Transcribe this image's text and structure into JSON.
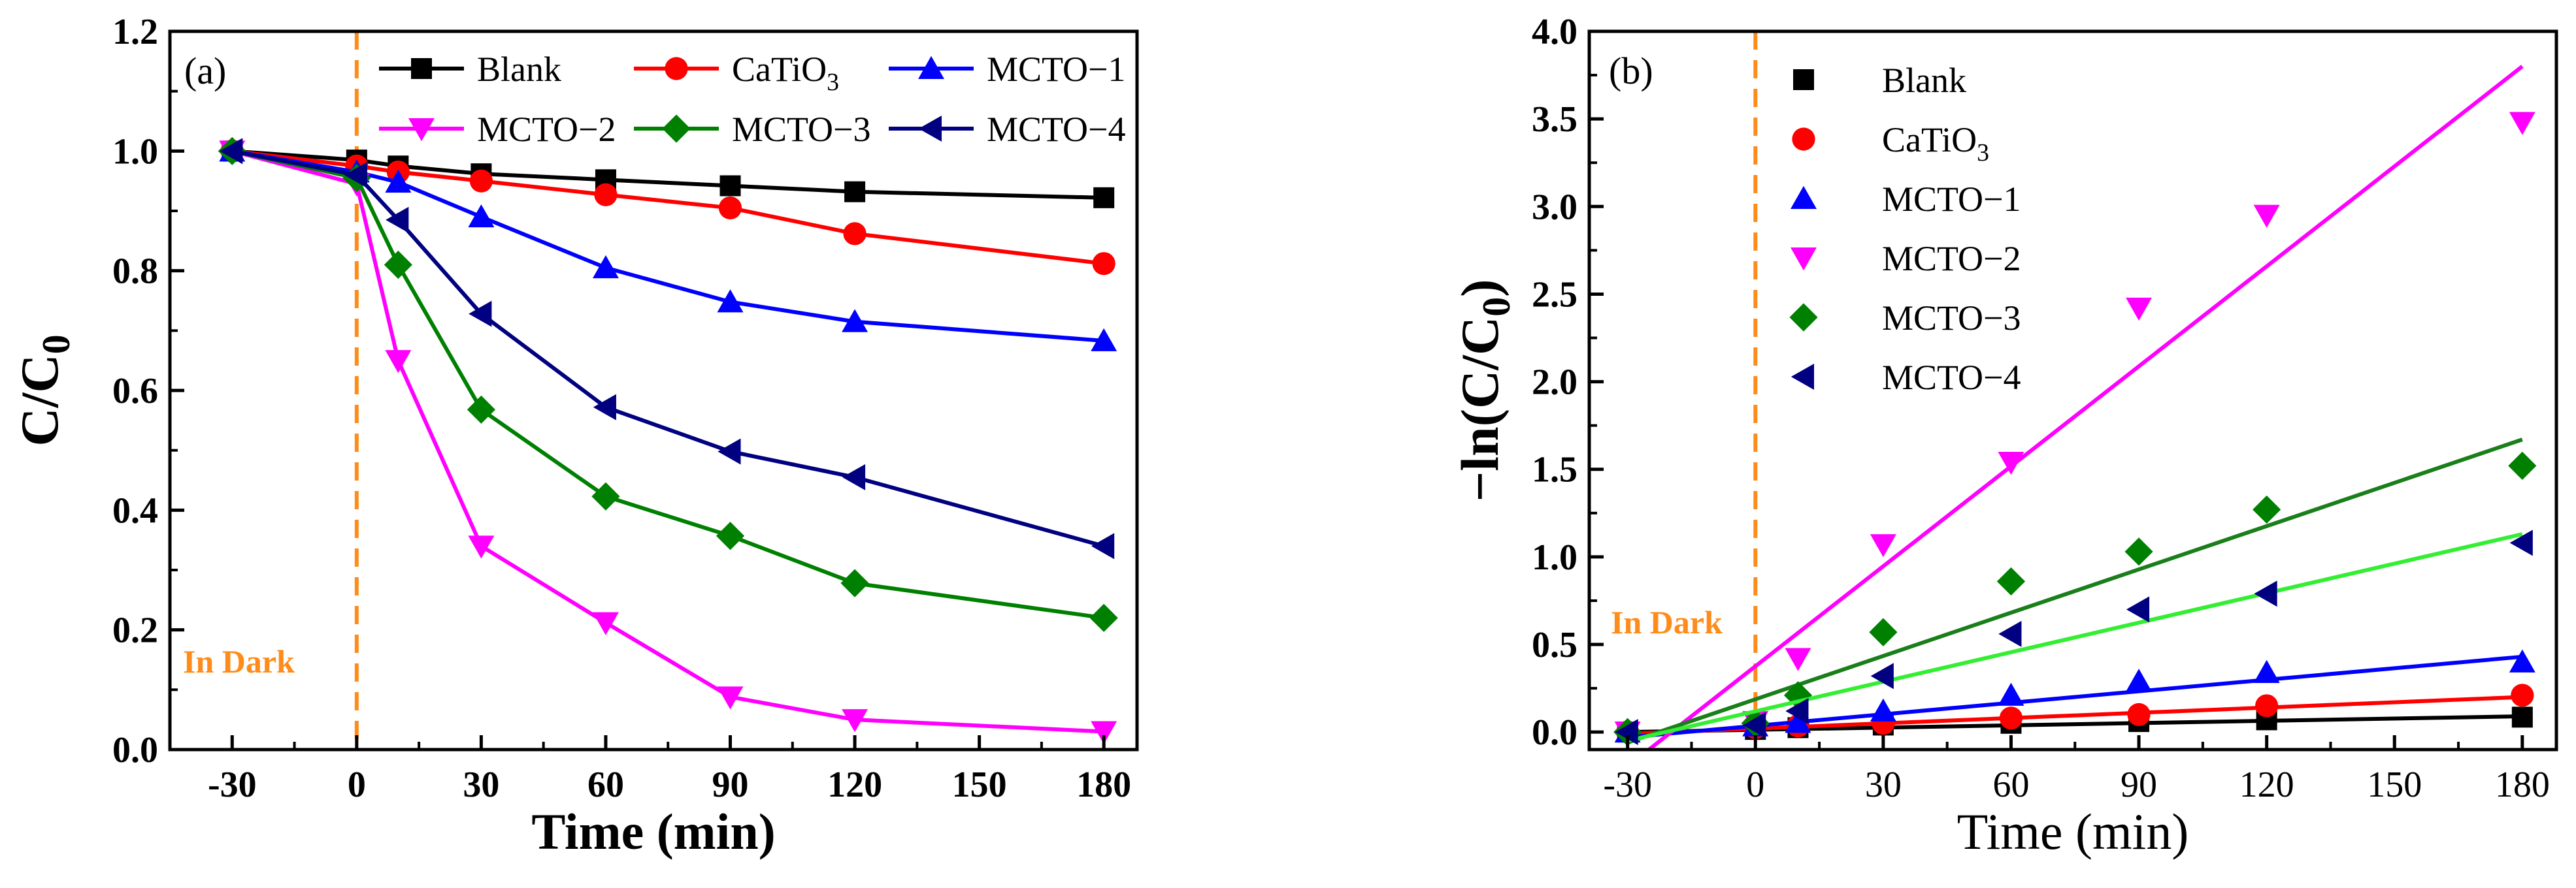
{
  "chart_data": [
    {
      "panel_label": "(a)",
      "type": "line",
      "xlabel": "Time (min)",
      "ylabel_main": "C/C",
      "ylabel_sub": "0",
      "x": [
        -30,
        0,
        10,
        30,
        60,
        90,
        120,
        180
      ],
      "xticks": [
        -30,
        0,
        30,
        60,
        90,
        120,
        150,
        180
      ],
      "xtick_labels": [
        "-30",
        "0",
        "30",
        "60",
        "90",
        "120",
        "150",
        "180"
      ],
      "yticks": [
        0.0,
        0.2,
        0.4,
        0.6,
        0.8,
        1.0,
        1.2
      ],
      "ytick_labels": [
        "0.0",
        "0.2",
        "0.4",
        "0.6",
        "0.8",
        "1.0",
        "1.2"
      ],
      "xlim": [
        -45,
        188
      ],
      "ylim": [
        0,
        1.2
      ],
      "dark_line_x": 0,
      "annotation": "In Dark",
      "legend_position": "top-right, 3 columns",
      "series": [
        {
          "name": "Blank",
          "name_main": "Blank",
          "name_sub": "",
          "color": "#000000",
          "marker": "square",
          "values": [
            1.0,
            0.985,
            0.975,
            0.962,
            0.952,
            0.942,
            0.932,
            0.922
          ]
        },
        {
          "name": "CaTiO3",
          "name_main": "CaTiO",
          "name_sub": "3",
          "color": "#ff0000",
          "marker": "circle",
          "values": [
            1.0,
            0.975,
            0.965,
            0.95,
            0.927,
            0.905,
            0.862,
            0.812
          ]
        },
        {
          "name": "MCTO-1",
          "name_main": "MCTO−1",
          "name_sub": "",
          "color": "#0000ff",
          "marker": "triangle-up",
          "values": [
            1.0,
            0.965,
            0.948,
            0.89,
            0.805,
            0.748,
            0.715,
            0.683
          ]
        },
        {
          "name": "MCTO-2",
          "name_main": "MCTO−2",
          "name_sub": "",
          "color": "#ff00ff",
          "marker": "triangle-down",
          "values": [
            1.0,
            0.945,
            0.65,
            0.34,
            0.212,
            0.088,
            0.05,
            0.03
          ]
        },
        {
          "name": "MCTO-3",
          "name_main": "MCTO−3",
          "name_sub": "",
          "color": "#008000",
          "marker": "diamond",
          "values": [
            1.0,
            0.955,
            0.81,
            0.568,
            0.423,
            0.357,
            0.278,
            0.22
          ]
        },
        {
          "name": "MCTO-4",
          "name_main": "MCTO−4",
          "name_sub": "",
          "color": "#000080",
          "marker": "triangle-left",
          "values": [
            1.0,
            0.96,
            0.885,
            0.728,
            0.572,
            0.498,
            0.455,
            0.34
          ]
        }
      ]
    },
    {
      "panel_label": "(b)",
      "type": "scatter",
      "xlabel": "Time (min)",
      "ylabel_main": "−ln(C/C",
      "ylabel_sub": "0",
      "ylabel_end": ")",
      "x": [
        -30,
        0,
        10,
        30,
        60,
        90,
        120,
        180
      ],
      "xticks": [
        -30,
        0,
        30,
        60,
        90,
        120,
        150,
        180
      ],
      "xtick_labels": [
        "-30",
        "0",
        "30",
        "60",
        "90",
        "120",
        "150",
        "180"
      ],
      "yticks": [
        0.0,
        0.5,
        1.0,
        1.5,
        2.0,
        2.5,
        3.0,
        3.5,
        4.0
      ],
      "ytick_labels": [
        "0.0",
        "0.5",
        "1.0",
        "1.5",
        "2.0",
        "2.5",
        "3.0",
        "3.5",
        "4.0"
      ],
      "xlim": [
        -39,
        188
      ],
      "ylim": [
        -0.1,
        4.0
      ],
      "dark_line_x": 0,
      "annotation": "In Dark",
      "legend_position": "top-left, 1 column",
      "series": [
        {
          "name": "Blank",
          "name_main": "Blank",
          "name_sub": "",
          "color": "#000000",
          "marker": "square",
          "values": [
            0.0,
            0.015,
            0.025,
            0.04,
            0.05,
            0.06,
            0.07,
            0.085
          ],
          "fit": [
            [
              -30,
              0.0
            ],
            [
              180,
              0.09
            ]
          ],
          "fit_color": "#000000"
        },
        {
          "name": "CaTiO3",
          "name_main": "CaTiO",
          "name_sub": "3",
          "color": "#ff0000",
          "marker": "circle",
          "values": [
            0.0,
            0.025,
            0.035,
            0.05,
            0.08,
            0.1,
            0.15,
            0.21
          ],
          "fit": [
            [
              -30,
              -0.01
            ],
            [
              180,
              0.2
            ]
          ],
          "fit_color": "#ff0000"
        },
        {
          "name": "MCTO-1",
          "name_main": "MCTO−1",
          "name_sub": "",
          "color": "#0000ff",
          "marker": "triangle-up",
          "values": [
            0.0,
            0.035,
            0.055,
            0.12,
            0.21,
            0.29,
            0.34,
            0.4
          ],
          "fit": [
            [
              -30,
              -0.03
            ],
            [
              180,
              0.43
            ]
          ],
          "fit_color": "#0000ff"
        },
        {
          "name": "MCTO-2",
          "name_main": "MCTO−2",
          "name_sub": "",
          "color": "#ff00ff",
          "marker": "triangle-down",
          "values": [
            0.0,
            0.06,
            0.42,
            1.07,
            1.54,
            2.42,
            2.95,
            3.48
          ],
          "fit": [
            [
              -25,
              -0.1
            ],
            [
              180,
              3.8
            ]
          ],
          "fit_color": "#ff00ff"
        },
        {
          "name": "MCTO-3",
          "name_main": "MCTO−3",
          "name_sub": "",
          "color": "#008000",
          "marker": "diamond",
          "values": [
            0.0,
            0.05,
            0.21,
            0.57,
            0.86,
            1.03,
            1.27,
            1.52
          ],
          "fit": [
            [
              -30,
              -0.06
            ],
            [
              180,
              1.67
            ]
          ],
          "fit_color": "#1a7f1a"
        },
        {
          "name": "MCTO-4",
          "name_main": "MCTO−4",
          "name_sub": "",
          "color": "#000080",
          "marker": "triangle-left",
          "values": [
            0.0,
            0.04,
            0.12,
            0.32,
            0.56,
            0.7,
            0.79,
            1.08
          ],
          "fit": [
            [
              -30,
              -0.05
            ],
            [
              180,
              1.13
            ]
          ],
          "fit_color": "#33ee33"
        }
      ]
    }
  ]
}
